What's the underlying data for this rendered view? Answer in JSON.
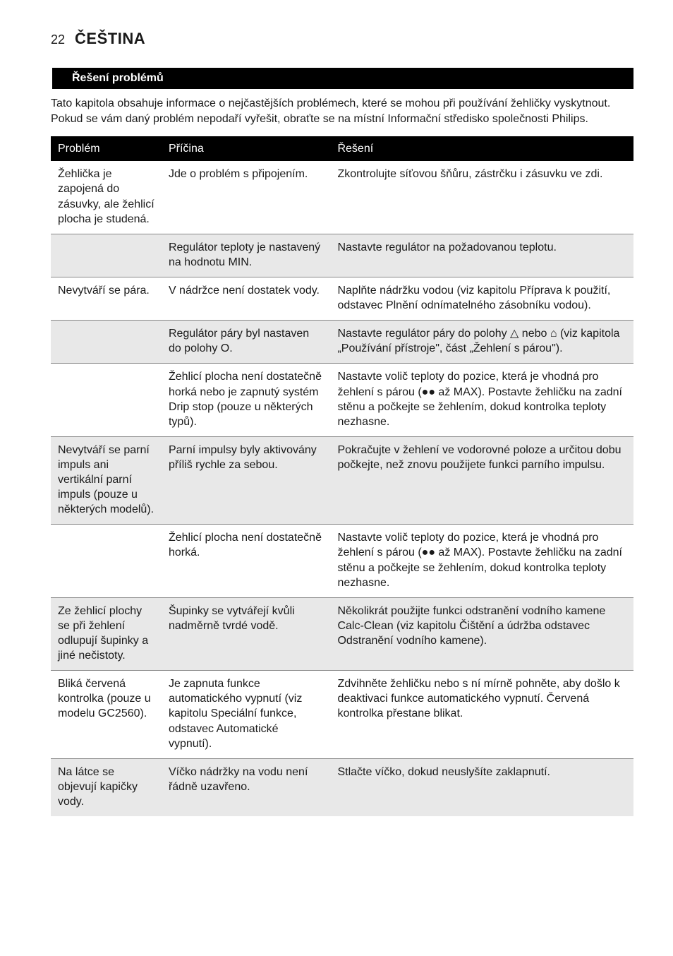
{
  "header": {
    "page_number": "22",
    "language": "ČEŠTINA"
  },
  "section_title": "Řešení problémů",
  "intro": "Tato kapitola obsahuje informace o nejčastějších problémech, které se mohou při používání žehličky vyskytnout. Pokud se vám daný problém nepodaří vyřešit, obraťte se na místní Informační středisko společnosti Philips.",
  "table": {
    "columns": [
      "Problém",
      "Příčina",
      "Řešení"
    ],
    "header_bg": "#000000",
    "header_fg": "#ffffff",
    "shaded_bg": "#e8e8e8",
    "border_color": "#888888",
    "font_size": 16,
    "col_widths_pct": [
      19,
      29,
      52
    ],
    "rows": [
      {
        "problem": "Žehlička je zapojená do zásuvky, ale žehlicí plocha je studená.",
        "cause": "Jde o problém s připojením.",
        "solution": "Zkontrolujte síťovou šňůru, zástrčku i zásuvku ve zdi.",
        "shaded": false
      },
      {
        "problem": "",
        "cause": "Regulátor teploty je nastavený na hodnotu MIN.",
        "solution": "Nastavte regulátor na požadovanou teplotu.",
        "shaded": true
      },
      {
        "problem": "Nevytváří se pára.",
        "cause": "V nádržce není dostatek vody.",
        "solution": "Naplňte nádržku vodou (viz kapitolu Příprava k použití, odstavec Plnění odnímatelného zásobníku vodou).",
        "shaded": false
      },
      {
        "problem": "",
        "cause": "Regulátor páry byl nastaven do polohy O.",
        "solution": "Nastavte regulátor páry do polohy △ nebo ⌂ (viz kapitola „Používání přístroje\", část „Žehlení s párou\").",
        "shaded": true
      },
      {
        "problem": "",
        "cause": "Žehlicí plocha není dostatečně horká nebo je zapnutý systém Drip stop (pouze u některých typů).",
        "solution": "Nastavte volič teploty do pozice, která je vhodná pro žehlení s párou (●● až MAX). Postavte žehličku na zadní stěnu a počkejte se žehlením, dokud kontrolka teploty nezhasne.",
        "shaded": false
      },
      {
        "problem": "Nevytváří se parní impuls ani vertikální parní impuls (pouze u některých modelů).",
        "cause": "Parní impulsy byly aktivovány příliš rychle za sebou.",
        "solution": "Pokračujte v žehlení ve vodorovné poloze a určitou dobu počkejte, než znovu použijete funkci parního impulsu.",
        "shaded": true
      },
      {
        "problem": "",
        "cause": "Žehlicí plocha není dostatečně horká.",
        "solution": "Nastavte volič teploty do pozice, která je vhodná pro žehlení s párou (●● až MAX). Postavte žehličku na zadní stěnu a počkejte se žehlením, dokud kontrolka teploty nezhasne.",
        "shaded": false
      },
      {
        "problem": "Ze žehlicí plochy se při žehlení odlupují šupinky a jiné nečistoty.",
        "cause": "Šupinky se vytvářejí kvůli nadměrně tvrdé vodě.",
        "solution": "Několikrát použijte funkci odstranění vodního kamene Calc-Clean (viz kapitolu Čištění a údržba odstavec Odstranění vodního kamene).",
        "shaded": true
      },
      {
        "problem": "Bliká červená kontrolka (pouze u modelu GC2560).",
        "cause": "Je zapnuta funkce automatického vypnutí (viz kapitolu Speciální funkce, odstavec Automatické vypnutí).",
        "solution": "Zdvihněte žehličku nebo s ní mírně pohněte, aby došlo k deaktivaci funkce automatického vypnutí. Červená kontrolka přestane blikat.",
        "shaded": false
      },
      {
        "problem": "Na látce se objevují kapičky vody.",
        "cause": "Víčko nádržky na vodu není řádně uzavřeno.",
        "solution": "Stlačte víčko, dokud neuslyšíte zaklapnutí.",
        "shaded": true
      }
    ]
  }
}
